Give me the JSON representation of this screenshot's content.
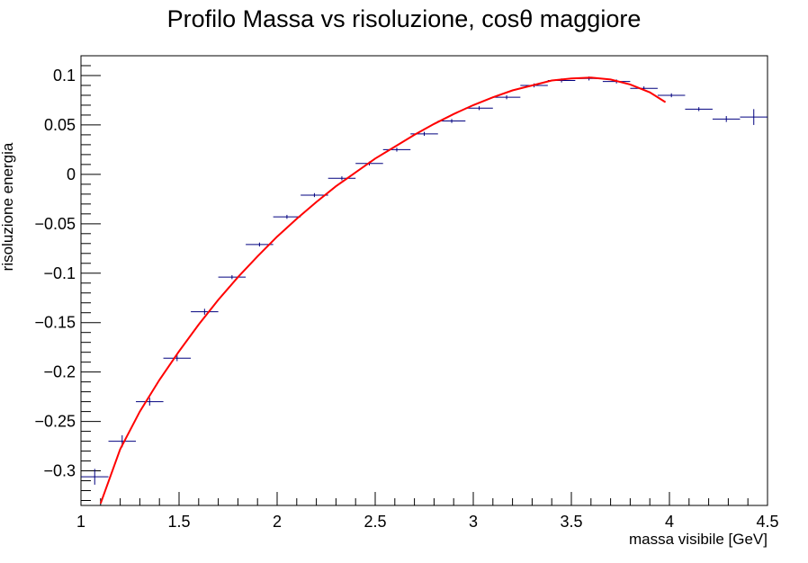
{
  "chart_data": {
    "type": "scatter",
    "title": "Profilo Massa vs risoluzione,  cosθ maggiore",
    "xlabel": "massa visibile [GeV]",
    "ylabel": "risoluzione energia",
    "xlim": [
      1.0,
      4.5
    ],
    "ylim": [
      -0.335,
      0.12
    ],
    "grid": false,
    "x_ticks": [
      {
        "value": 1.0,
        "label": "1"
      },
      {
        "value": 1.5,
        "label": "1.5"
      },
      {
        "value": 2.0,
        "label": "2"
      },
      {
        "value": 2.5,
        "label": "2.5"
      },
      {
        "value": 3.0,
        "label": "3"
      },
      {
        "value": 3.5,
        "label": "3.5"
      },
      {
        "value": 4.0,
        "label": "4"
      },
      {
        "value": 4.5,
        "label": "4.5"
      }
    ],
    "y_ticks": [
      {
        "value": 0.1,
        "label": "0.1"
      },
      {
        "value": 0.05,
        "label": "0.05"
      },
      {
        "value": 0.0,
        "label": "0"
      },
      {
        "value": -0.05,
        "label": "−0.05"
      },
      {
        "value": -0.1,
        "label": "−0.1"
      },
      {
        "value": -0.15,
        "label": "−0.15"
      },
      {
        "value": -0.2,
        "label": "−0.2"
      },
      {
        "value": -0.25,
        "label": "−0.25"
      },
      {
        "value": -0.3,
        "label": "−0.3"
      }
    ],
    "profile": {
      "color": "#00007f",
      "bin_halfwidth": 0.07,
      "points": [
        {
          "x": 1.07,
          "y": -0.306,
          "err": 0.008
        },
        {
          "x": 1.21,
          "y": -0.27,
          "err": 0.006
        },
        {
          "x": 1.35,
          "y": -0.23,
          "err": 0.004
        },
        {
          "x": 1.49,
          "y": -0.186,
          "err": 0.003
        },
        {
          "x": 1.63,
          "y": -0.139,
          "err": 0.003
        },
        {
          "x": 1.77,
          "y": -0.104,
          "err": 0.002
        },
        {
          "x": 1.91,
          "y": -0.071,
          "err": 0.002
        },
        {
          "x": 2.05,
          "y": -0.043,
          "err": 0.002
        },
        {
          "x": 2.19,
          "y": -0.021,
          "err": 0.002
        },
        {
          "x": 2.33,
          "y": -0.004,
          "err": 0.002
        },
        {
          "x": 2.47,
          "y": 0.011,
          "err": 0.002
        },
        {
          "x": 2.61,
          "y": 0.025,
          "err": 0.002
        },
        {
          "x": 2.75,
          "y": 0.041,
          "err": 0.002
        },
        {
          "x": 2.89,
          "y": 0.054,
          "err": 0.002
        },
        {
          "x": 3.03,
          "y": 0.067,
          "err": 0.002
        },
        {
          "x": 3.17,
          "y": 0.078,
          "err": 0.002
        },
        {
          "x": 3.31,
          "y": 0.09,
          "err": 0.002
        },
        {
          "x": 3.45,
          "y": 0.095,
          "err": 0.002
        },
        {
          "x": 3.59,
          "y": 0.097,
          "err": 0.002
        },
        {
          "x": 3.73,
          "y": 0.094,
          "err": 0.002
        },
        {
          "x": 3.87,
          "y": 0.087,
          "err": 0.002
        },
        {
          "x": 4.01,
          "y": 0.08,
          "err": 0.002
        },
        {
          "x": 4.15,
          "y": 0.066,
          "err": 0.002
        },
        {
          "x": 4.29,
          "y": 0.056,
          "err": 0.003
        },
        {
          "x": 4.43,
          "y": 0.058,
          "err": 0.008
        }
      ]
    },
    "fit": {
      "color": "#ff0000",
      "x_min": 1.1,
      "x_max": 3.98,
      "points": [
        {
          "x": 1.1,
          "y": -0.333
        },
        {
          "x": 1.2,
          "y": -0.278
        },
        {
          "x": 1.3,
          "y": -0.24
        },
        {
          "x": 1.4,
          "y": -0.208
        },
        {
          "x": 1.5,
          "y": -0.179
        },
        {
          "x": 1.6,
          "y": -0.152
        },
        {
          "x": 1.7,
          "y": -0.127
        },
        {
          "x": 1.8,
          "y": -0.104
        },
        {
          "x": 1.9,
          "y": -0.083
        },
        {
          "x": 2.0,
          "y": -0.063
        },
        {
          "x": 2.1,
          "y": -0.045
        },
        {
          "x": 2.2,
          "y": -0.028
        },
        {
          "x": 2.3,
          "y": -0.012
        },
        {
          "x": 2.4,
          "y": 0.002
        },
        {
          "x": 2.5,
          "y": 0.016
        },
        {
          "x": 2.6,
          "y": 0.028
        },
        {
          "x": 2.7,
          "y": 0.04
        },
        {
          "x": 2.8,
          "y": 0.051
        },
        {
          "x": 2.9,
          "y": 0.061
        },
        {
          "x": 3.0,
          "y": 0.07
        },
        {
          "x": 3.1,
          "y": 0.078
        },
        {
          "x": 3.2,
          "y": 0.085
        },
        {
          "x": 3.3,
          "y": 0.09
        },
        {
          "x": 3.4,
          "y": 0.095
        },
        {
          "x": 3.5,
          "y": 0.097
        },
        {
          "x": 3.6,
          "y": 0.098
        },
        {
          "x": 3.7,
          "y": 0.096
        },
        {
          "x": 3.8,
          "y": 0.091
        },
        {
          "x": 3.9,
          "y": 0.083
        },
        {
          "x": 3.98,
          "y": 0.073
        }
      ]
    }
  }
}
